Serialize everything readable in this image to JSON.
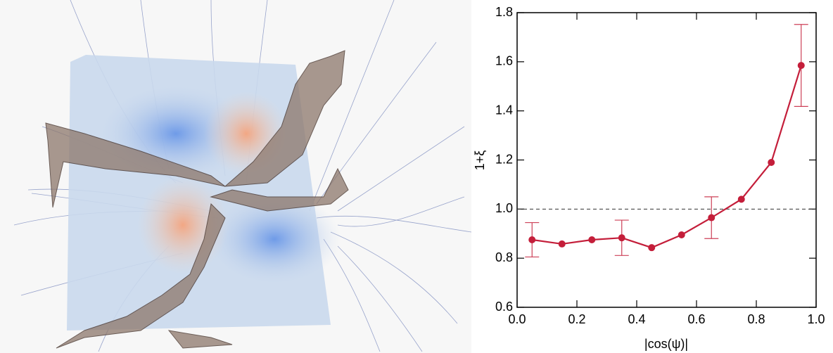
{
  "chart_data": {
    "type": "line",
    "x": [
      0.05,
      0.15,
      0.25,
      0.35,
      0.45,
      0.55,
      0.65,
      0.75,
      0.85,
      0.95
    ],
    "series": [
      {
        "color": "#c41e3a",
        "values": [
          0.875,
          0.858,
          0.875,
          0.883,
          0.843,
          0.895,
          0.965,
          1.04,
          1.19,
          1.585
        ],
        "errors": [
          0.07,
          null,
          null,
          0.072,
          null,
          null,
          0.085,
          null,
          null,
          0.167
        ]
      }
    ],
    "xlabel": "|cos(ψ)|",
    "ylabel": "1+ξ",
    "xlim": [
      0,
      1
    ],
    "xticks": [
      {
        "value": 0,
        "label": "0.0"
      },
      0.2,
      0.4,
      0.6,
      0.8,
      {
        "value": 1,
        "label": "1.0"
      }
    ],
    "ylim": [
      0.6,
      1.8
    ],
    "yticks": [
      0.6,
      0.8,
      {
        "value": 1,
        "label": "1.0"
      },
      1.2,
      1.4,
      1.6,
      1.8
    ],
    "reference_line": 1,
    "grid": false
  }
}
